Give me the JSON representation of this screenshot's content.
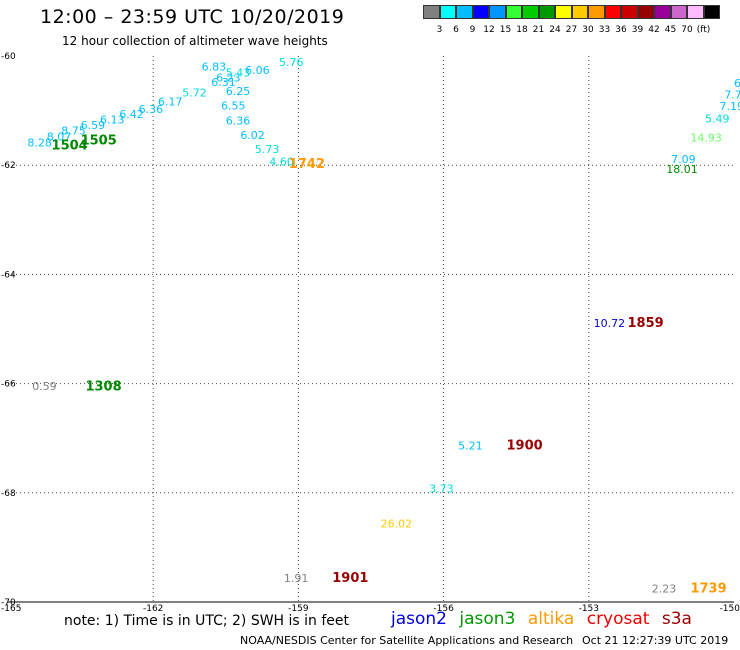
{
  "header": {
    "title": "12:00 – 23:59 UTC 10/20/2019",
    "subtitle": "12 hour collection of altimeter wave heights"
  },
  "colorbar": {
    "colors": [
      "#808080",
      "#00ffff",
      "#00bfff",
      "#0000ff",
      "#0096ff",
      "#33ff33",
      "#00cc00",
      "#009900",
      "#ffff00",
      "#ffcc00",
      "#ff9900",
      "#ff0000",
      "#cc0000",
      "#990000",
      "#990099",
      "#cc66cc",
      "#ffbbff",
      "#000000"
    ],
    "ticks": [
      "3",
      "6",
      "9",
      "12",
      "15",
      "18",
      "21",
      "24",
      "27",
      "30",
      "33",
      "36",
      "39",
      "42",
      "45",
      "70",
      "(ft)"
    ]
  },
  "map": {
    "lon_range": [
      -165,
      -150
    ],
    "lat_range": [
      -70,
      -60
    ],
    "x_tick_labels": [
      "-165",
      "-162",
      "-159",
      "-156",
      "-153",
      "-150"
    ],
    "y_tick_labels": [
      "-60",
      "-62",
      "-64",
      "-66",
      "-68",
      "-70"
    ],
    "swh_values": [
      {
        "lon": -164.6,
        "lat": -61.66,
        "text": "8.28",
        "color": "#00bfff"
      },
      {
        "lon": -164.2,
        "lat": -61.55,
        "text": "8.07",
        "color": "#00bfff"
      },
      {
        "lon": -163.9,
        "lat": -61.44,
        "text": "8.75",
        "color": "#00bfff"
      },
      {
        "lon": -163.5,
        "lat": -61.34,
        "text": "6.59",
        "color": "#00bfff"
      },
      {
        "lon": -163.1,
        "lat": -61.24,
        "text": "6.13",
        "color": "#00bfff"
      },
      {
        "lon": -162.7,
        "lat": -61.14,
        "text": "6.42",
        "color": "#00bfff"
      },
      {
        "lon": -162.3,
        "lat": -61.04,
        "text": "6.36",
        "color": "#00bfff"
      },
      {
        "lon": -161.9,
        "lat": -60.91,
        "text": "6.17",
        "color": "#00bfff"
      },
      {
        "lon": -161.4,
        "lat": -60.74,
        "text": "5.72",
        "color": "#00dddd"
      },
      {
        "lon": -160.8,
        "lat": -60.55,
        "text": "6.31",
        "color": "#00bfff"
      },
      {
        "lon": -160.7,
        "lat": -60.47,
        "text": "6.23",
        "color": "#00bfff"
      },
      {
        "lon": -160.5,
        "lat": -60.38,
        "text": "5.43",
        "color": "#00dddd"
      },
      {
        "lon": -160.1,
        "lat": -60.33,
        "text": "6.06",
        "color": "#00bfff"
      },
      {
        "lon": -161.0,
        "lat": -60.27,
        "text": "6.83",
        "color": "#00bfff"
      },
      {
        "lon": -159.4,
        "lat": -60.18,
        "text": "5.76",
        "color": "#00dddd"
      },
      {
        "lon": -160.5,
        "lat": -60.71,
        "text": "6.25",
        "color": "#00bfff"
      },
      {
        "lon": -160.6,
        "lat": -60.98,
        "text": "6.55",
        "color": "#00bfff"
      },
      {
        "lon": -160.5,
        "lat": -61.25,
        "text": "6.36",
        "color": "#00bfff"
      },
      {
        "lon": -160.2,
        "lat": -61.52,
        "text": "6.02",
        "color": "#00bfff"
      },
      {
        "lon": -159.9,
        "lat": -61.78,
        "text": "5.73",
        "color": "#00dddd"
      },
      {
        "lon": -159.6,
        "lat": -62.01,
        "text": "4.60",
        "color": "#00dddd"
      },
      {
        "lon": -164.5,
        "lat": -66.12,
        "text": "0.59",
        "color": "#808080"
      },
      {
        "lon": -152.9,
        "lat": -64.96,
        "text": "10.72",
        "color": "#0000cc"
      },
      {
        "lon": -155.7,
        "lat": -67.21,
        "text": "5.21",
        "color": "#00bfff"
      },
      {
        "lon": -156.3,
        "lat": -67.99,
        "text": "3.73",
        "color": "#00dddd"
      },
      {
        "lon": -157.3,
        "lat": -68.64,
        "text": "26.02",
        "color": "#ffcc00"
      },
      {
        "lon": -159.3,
        "lat": -69.63,
        "text": "1.91",
        "color": "#808080"
      },
      {
        "lon": -151.7,
        "lat": -69.83,
        "text": "2.23",
        "color": "#808080"
      },
      {
        "lon": -151.3,
        "lat": -61.96,
        "text": "7.09",
        "color": "#00bfff"
      },
      {
        "lon": -151.4,
        "lat": -62.14,
        "text": "18.01",
        "color": "#008800"
      },
      {
        "lon": -150.9,
        "lat": -61.57,
        "text": "14.93",
        "color": "#66ff66"
      },
      {
        "lon": -150.6,
        "lat": -61.22,
        "text": "5.49",
        "color": "#00dddd"
      },
      {
        "lon": -150.3,
        "lat": -60.99,
        "text": "7.19",
        "color": "#00bfff"
      },
      {
        "lon": -150.2,
        "lat": -60.78,
        "text": "7.70",
        "color": "#00bfff"
      },
      {
        "lon": -150.0,
        "lat": -60.57,
        "text": "6.",
        "color": "#00bfff"
      },
      {
        "lon": -149.9,
        "lat": -60.36,
        "text": "1",
        "color": "#00bfff"
      }
    ],
    "time_labels": [
      {
        "lon": -164.1,
        "lat": -61.71,
        "text": "1504",
        "color": "#008800"
      },
      {
        "lon": -163.5,
        "lat": -61.62,
        "text": "1505",
        "color": "#008800"
      },
      {
        "lon": -159.2,
        "lat": -62.05,
        "text": "1742",
        "color": "#ff9900"
      },
      {
        "lon": -163.4,
        "lat": -66.13,
        "text": "1308",
        "color": "#008800"
      },
      {
        "lon": -152.2,
        "lat": -64.96,
        "text": "1859",
        "color": "#990000"
      },
      {
        "lon": -154.7,
        "lat": -67.21,
        "text": "1900",
        "color": "#990000"
      },
      {
        "lon": -158.3,
        "lat": -69.63,
        "text": "1901",
        "color": "#990000"
      },
      {
        "lon": -150.9,
        "lat": -69.83,
        "text": "1739",
        "color": "#ff9900"
      }
    ]
  },
  "note": "note: 1) Time is in UTC; 2) SWH is in feet",
  "legend": [
    {
      "label": "jason2",
      "color": "#0000dd"
    },
    {
      "label": "jason3",
      "color": "#009900"
    },
    {
      "label": "altika",
      "color": "#ff9900"
    },
    {
      "label": "cryosat",
      "color": "#ee0000"
    },
    {
      "label": "s3a",
      "color": "#990000"
    }
  ],
  "footer": {
    "credit": "NOAA/NESDIS Center for Satellite Applications and Research",
    "timestamp": "Oct 21 12:27:39 UTC 2019"
  }
}
